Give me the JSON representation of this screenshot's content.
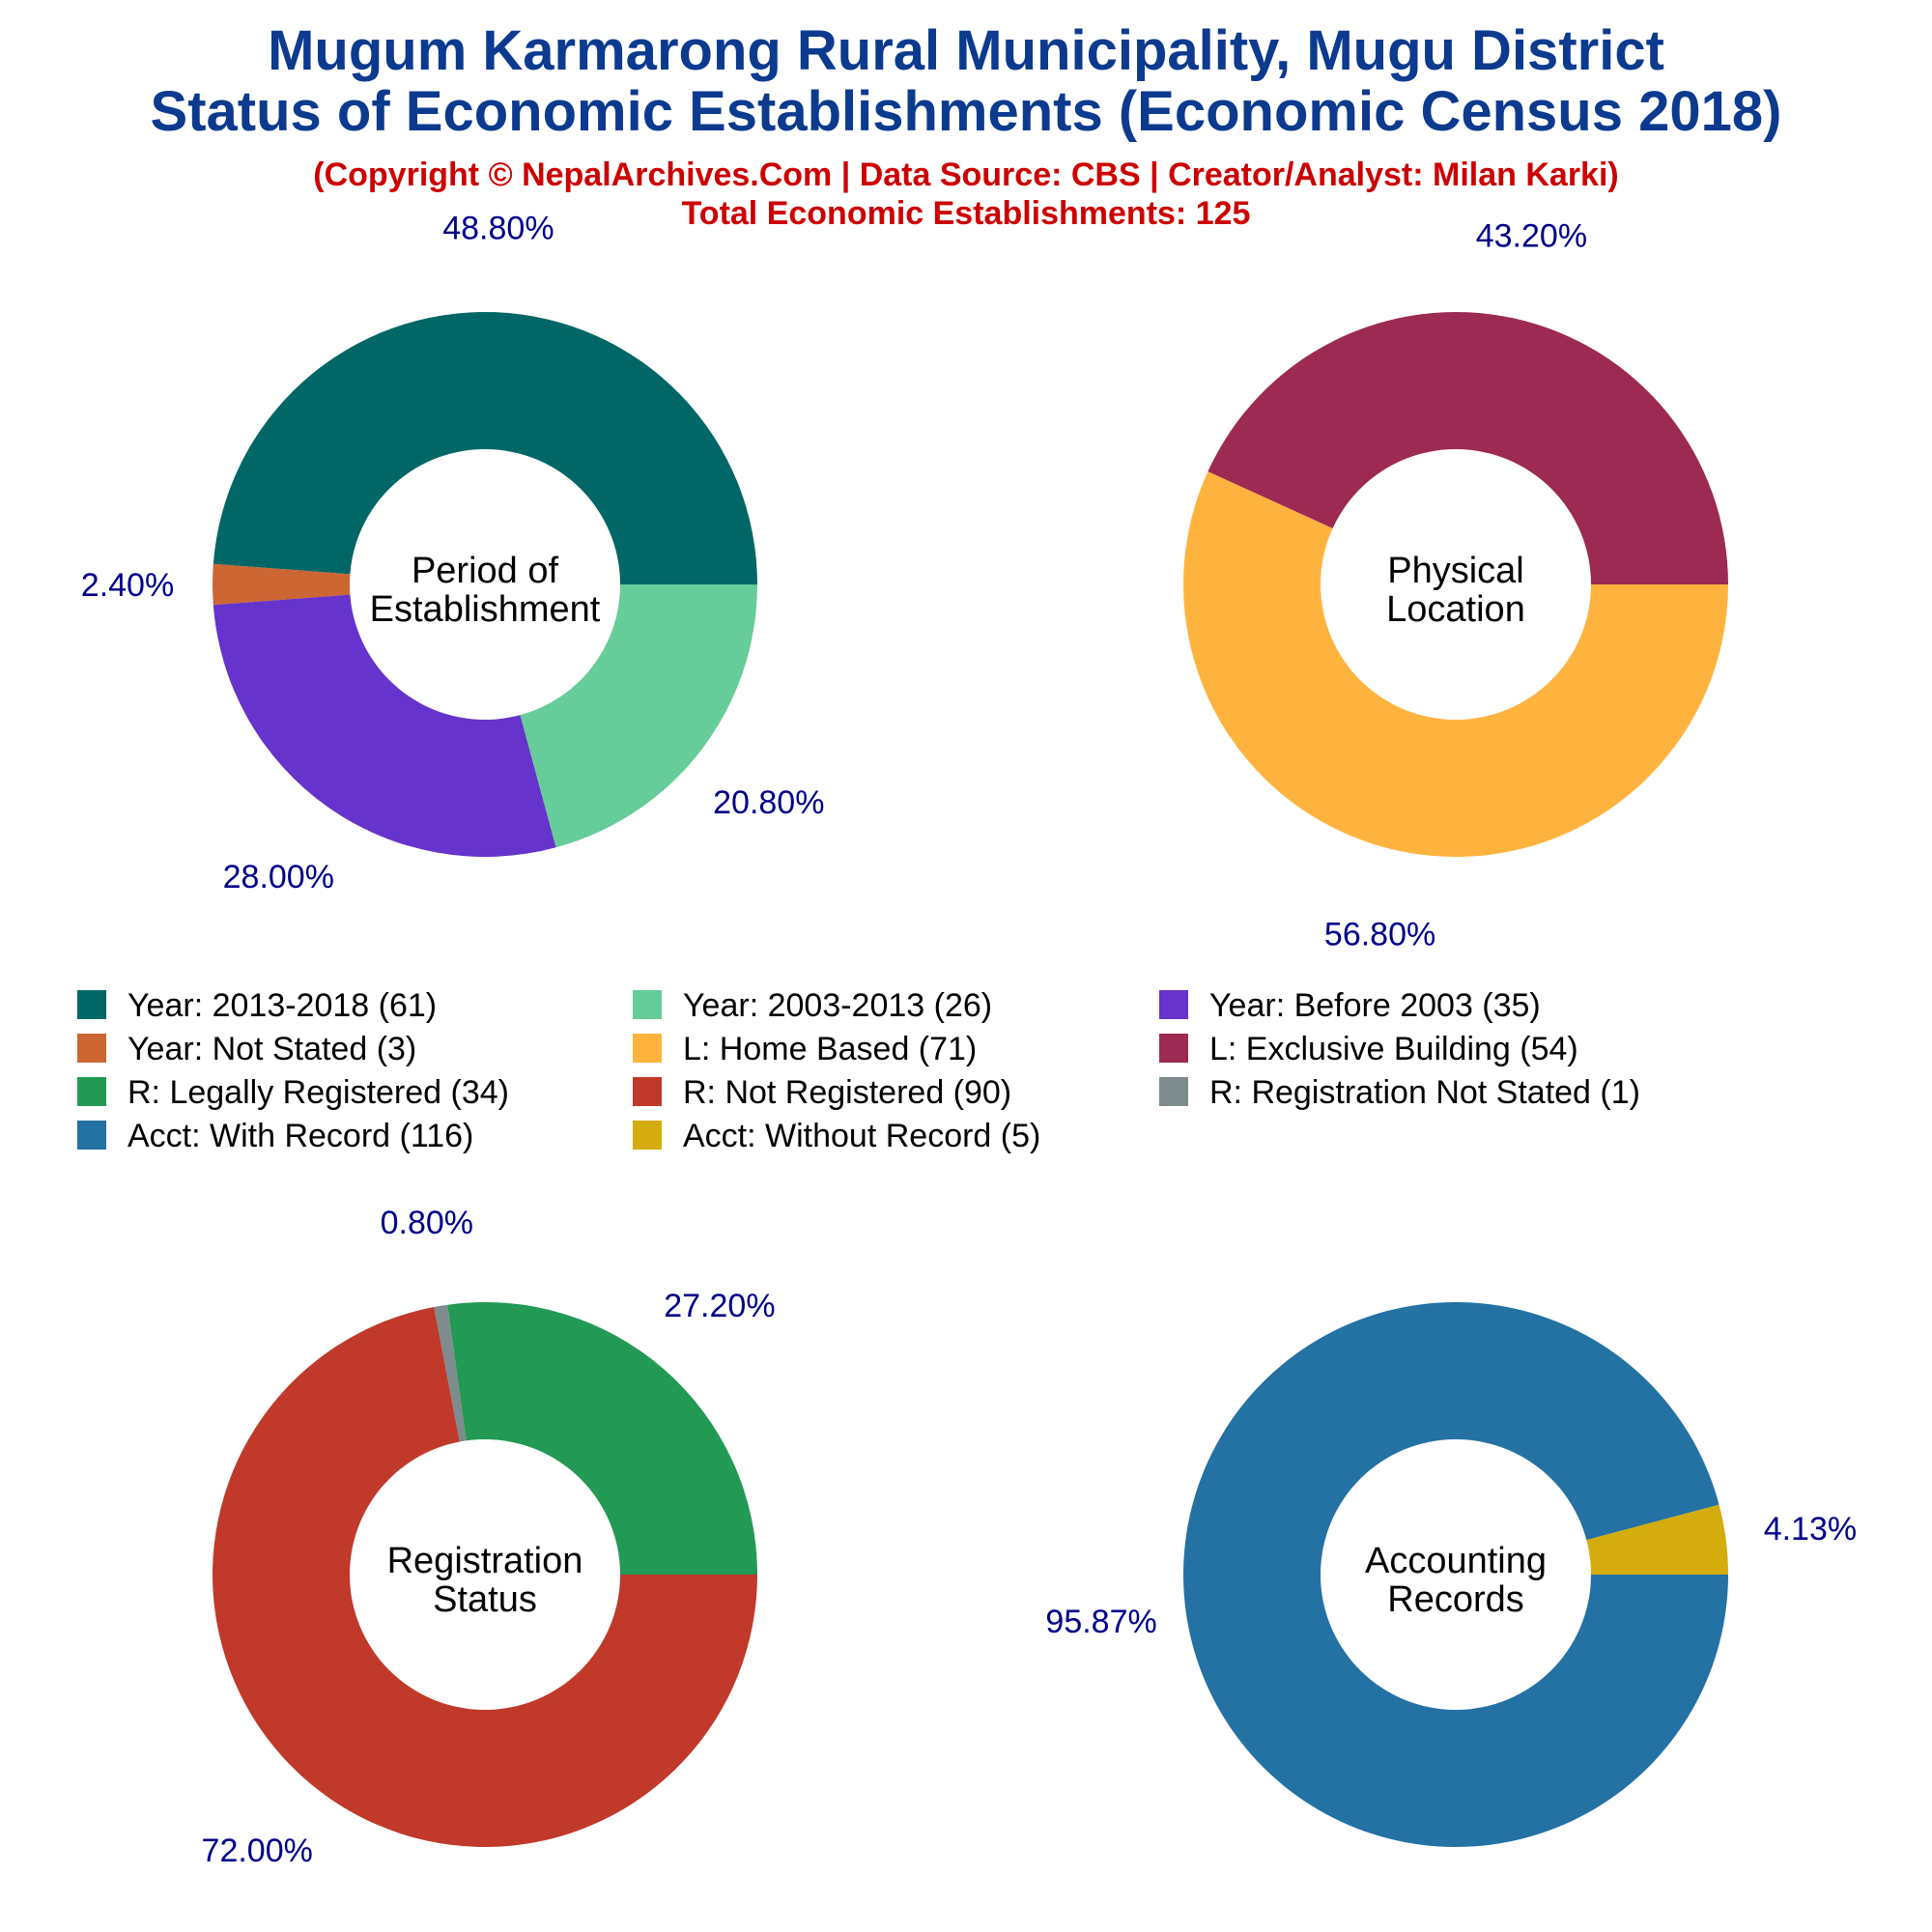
{
  "header": {
    "title_line1": "Mugum Karmarong Rural Municipality, Mugu District",
    "title_line2": "Status of Economic Establishments (Economic Census 2018)",
    "copyright": "(Copyright © NepalArchives.Com | Data Source: CBS | Creator/Analyst: Milan Karki)",
    "total": "Total Economic Establishments: 125"
  },
  "colors": {
    "title": "#0b3a8f",
    "subtitle": "#cc0000",
    "pct_label": "#00008b",
    "center_text": "#000000"
  },
  "legend": [
    {
      "label": "Year: 2013-2018 (61)",
      "color": "#006766"
    },
    {
      "label": "Year: 2003-2013 (26)",
      "color": "#66cc99"
    },
    {
      "label": "Year: Before 2003 (35)",
      "color": "#6633cc"
    },
    {
      "label": "Year: Not Stated (3)",
      "color": "#cc6633"
    },
    {
      "label": "L: Home Based (71)",
      "color": "#ffb33f"
    },
    {
      "label": "L: Exclusive Building (54)",
      "color": "#9c2a53"
    },
    {
      "label": "R: Legally Registered (34)",
      "color": "#229955"
    },
    {
      "label": "R: Not Registered (90)",
      "color": "#c0392b"
    },
    {
      "label": "R: Registration Not Stated (1)",
      "color": "#7f8c8d"
    },
    {
      "label": "Acct: With Record (116)",
      "color": "#2471a3"
    },
    {
      "label": "Acct: Without Record (5)",
      "color": "#d4ac0d"
    }
  ],
  "chart_data": [
    {
      "type": "pie",
      "center_label": [
        "Period of",
        "Establishment"
      ],
      "slices": [
        {
          "name": "Year: 2013-2018",
          "value": 61,
          "pct_label": "48.80%",
          "color": "#006766"
        },
        {
          "name": "Year: Not Stated",
          "value": 3,
          "pct_label": "2.40%",
          "color": "#cc6633"
        },
        {
          "name": "Year: Before 2003",
          "value": 35,
          "pct_label": "28.00%",
          "color": "#6633cc"
        },
        {
          "name": "Year: 2003-2013",
          "value": 26,
          "pct_label": "20.80%",
          "color": "#66cc99"
        }
      ]
    },
    {
      "type": "pie",
      "center_label": [
        "Physical",
        "Location"
      ],
      "slices": [
        {
          "name": "L: Exclusive Building",
          "value": 54,
          "pct_label": "43.20%",
          "color": "#9c2a53"
        },
        {
          "name": "L: Home Based",
          "value": 71,
          "pct_label": "56.80%",
          "color": "#ffb33f"
        }
      ]
    },
    {
      "type": "pie",
      "center_label": [
        "Registration",
        "Status"
      ],
      "slices": [
        {
          "name": "R: Legally Registered",
          "value": 34,
          "pct_label": "27.20%",
          "color": "#229955"
        },
        {
          "name": "R: Registration Not Stated",
          "value": 1,
          "pct_label": "0.80%",
          "color": "#7f8c8d"
        },
        {
          "name": "R: Not Registered",
          "value": 90,
          "pct_label": "72.00%",
          "color": "#c0392b"
        }
      ]
    },
    {
      "type": "pie",
      "center_label": [
        "Accounting",
        "Records"
      ],
      "slices": [
        {
          "name": "Acct: Without Record",
          "value": 5,
          "pct_label": "4.13%",
          "color": "#d4ac0d"
        },
        {
          "name": "Acct: With Record",
          "value": 116,
          "pct_label": "95.87%",
          "color": "#2471a3"
        }
      ]
    }
  ]
}
